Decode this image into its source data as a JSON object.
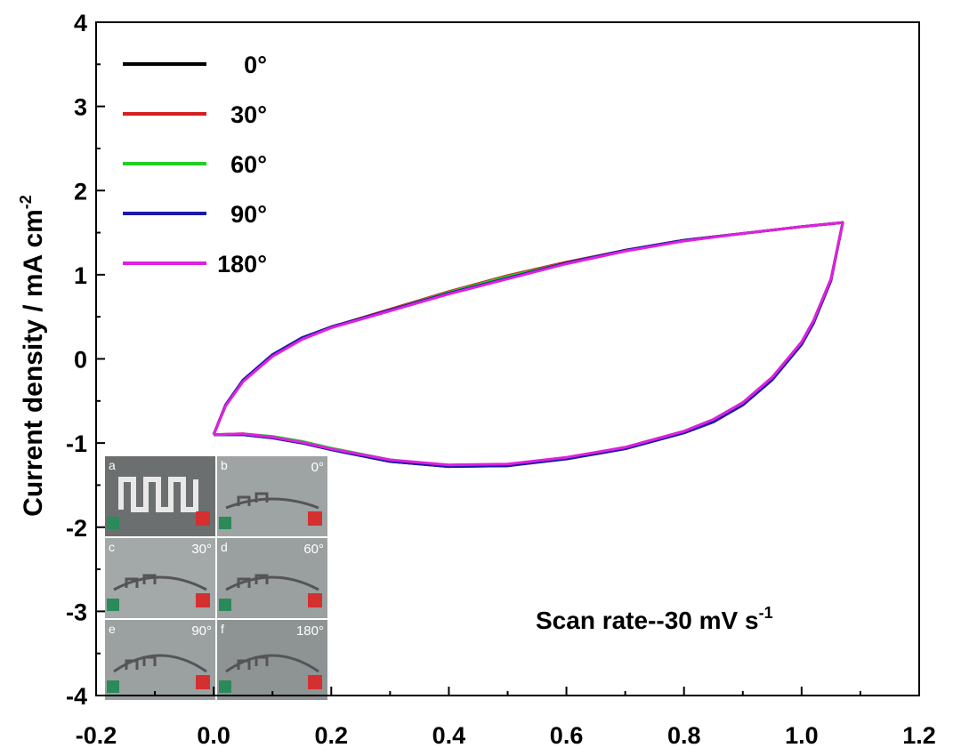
{
  "chart_data": {
    "type": "line",
    "title": "",
    "xlabel": "",
    "ylabel": "Current density / mA cm",
    "ylabel_sup": "-2",
    "xlim": [
      -0.2,
      1.2
    ],
    "ylim": [
      -4,
      4
    ],
    "x_ticks": [
      "-0.2",
      "0.0",
      "0.2",
      "0.4",
      "0.6",
      "0.8",
      "1.0",
      "1.2"
    ],
    "y_ticks": [
      "4",
      "3",
      "2",
      "1",
      "0",
      "-1",
      "-2",
      "-3",
      "-4"
    ],
    "legend_position": "top-left",
    "grid": false,
    "annotation": "Scan rate--30 mV s",
    "annotation_sup": "-1",
    "series": [
      {
        "name": "0°",
        "color": "#000000",
        "x": [
          0.0,
          0.02,
          0.05,
          0.1,
          0.15,
          0.2,
          0.3,
          0.4,
          0.5,
          0.6,
          0.7,
          0.8,
          0.9,
          1.0,
          1.07,
          1.05,
          1.02,
          1.0,
          0.95,
          0.9,
          0.85,
          0.8,
          0.7,
          0.6,
          0.5,
          0.4,
          0.3,
          0.2,
          0.15,
          0.1,
          0.05,
          0.0
        ],
        "y": [
          -0.9,
          -0.55,
          -0.25,
          0.05,
          0.25,
          0.38,
          0.58,
          0.78,
          0.96,
          1.14,
          1.29,
          1.41,
          1.49,
          1.57,
          1.62,
          0.95,
          0.45,
          0.2,
          -0.22,
          -0.52,
          -0.72,
          -0.86,
          -1.05,
          -1.18,
          -1.27,
          -1.28,
          -1.22,
          -1.08,
          -1.0,
          -0.94,
          -0.9,
          -0.9
        ]
      },
      {
        "name": "30°",
        "color": "#d42020",
        "x": [
          0.0,
          0.02,
          0.05,
          0.1,
          0.15,
          0.2,
          0.3,
          0.4,
          0.5,
          0.6,
          0.7,
          0.8,
          0.9,
          1.0,
          1.07,
          1.05,
          1.02,
          1.0,
          0.95,
          0.9,
          0.85,
          0.8,
          0.7,
          0.6,
          0.5,
          0.4,
          0.3,
          0.2,
          0.15,
          0.1,
          0.05,
          0.0
        ],
        "y": [
          -0.9,
          -0.56,
          -0.26,
          0.04,
          0.24,
          0.38,
          0.59,
          0.8,
          0.99,
          1.15,
          1.29,
          1.41,
          1.49,
          1.57,
          1.62,
          0.94,
          0.43,
          0.18,
          -0.24,
          -0.54,
          -0.74,
          -0.87,
          -1.06,
          -1.18,
          -1.26,
          -1.27,
          -1.21,
          -1.07,
          -0.99,
          -0.93,
          -0.89,
          -0.9
        ]
      },
      {
        "name": "60°",
        "color": "#22d022",
        "x": [
          0.0,
          0.02,
          0.05,
          0.1,
          0.15,
          0.2,
          0.3,
          0.4,
          0.5,
          0.6,
          0.7,
          0.8,
          0.9,
          1.0,
          1.07,
          1.05,
          1.02,
          1.0,
          0.95,
          0.9,
          0.85,
          0.8,
          0.7,
          0.6,
          0.5,
          0.4,
          0.3,
          0.2,
          0.15,
          0.1,
          0.05,
          0.0
        ],
        "y": [
          -0.9,
          -0.56,
          -0.26,
          0.04,
          0.24,
          0.38,
          0.58,
          0.79,
          0.98,
          1.14,
          1.29,
          1.41,
          1.49,
          1.57,
          1.62,
          0.94,
          0.43,
          0.18,
          -0.24,
          -0.54,
          -0.74,
          -0.87,
          -1.06,
          -1.18,
          -1.26,
          -1.27,
          -1.2,
          -1.06,
          -0.98,
          -0.92,
          -0.89,
          -0.9
        ]
      },
      {
        "name": "90°",
        "color": "#1a1aa8",
        "x": [
          0.0,
          0.02,
          0.05,
          0.1,
          0.15,
          0.2,
          0.3,
          0.4,
          0.5,
          0.6,
          0.7,
          0.8,
          0.9,
          1.0,
          1.07,
          1.05,
          1.02,
          1.0,
          0.95,
          0.9,
          0.85,
          0.8,
          0.7,
          0.6,
          0.5,
          0.4,
          0.3,
          0.2,
          0.15,
          0.1,
          0.05,
          0.0
        ],
        "y": [
          -0.9,
          -0.55,
          -0.25,
          0.05,
          0.25,
          0.38,
          0.58,
          0.78,
          0.96,
          1.14,
          1.29,
          1.41,
          1.49,
          1.57,
          1.62,
          0.93,
          0.42,
          0.17,
          -0.25,
          -0.55,
          -0.75,
          -0.88,
          -1.07,
          -1.19,
          -1.27,
          -1.28,
          -1.22,
          -1.08,
          -1.0,
          -0.94,
          -0.9,
          -0.9
        ]
      },
      {
        "name": "180°",
        "color": "#e020e0",
        "x": [
          0.0,
          0.02,
          0.05,
          0.1,
          0.15,
          0.2,
          0.3,
          0.4,
          0.5,
          0.6,
          0.7,
          0.8,
          0.9,
          1.0,
          1.07,
          1.05,
          1.02,
          1.0,
          0.95,
          0.9,
          0.85,
          0.8,
          0.7,
          0.6,
          0.5,
          0.4,
          0.3,
          0.2,
          0.15,
          0.1,
          0.05,
          0.0
        ],
        "y": [
          -0.9,
          -0.56,
          -0.27,
          0.03,
          0.23,
          0.37,
          0.57,
          0.77,
          0.95,
          1.13,
          1.28,
          1.4,
          1.49,
          1.57,
          1.62,
          0.95,
          0.45,
          0.2,
          -0.22,
          -0.52,
          -0.72,
          -0.86,
          -1.05,
          -1.17,
          -1.25,
          -1.26,
          -1.2,
          -1.07,
          -0.99,
          -0.93,
          -0.89,
          -0.9
        ]
      }
    ]
  },
  "inset": {
    "panels": [
      {
        "letter": "a",
        "angle": ""
      },
      {
        "letter": "b",
        "angle": "0°"
      },
      {
        "letter": "c",
        "angle": "30°"
      },
      {
        "letter": "d",
        "angle": "60°"
      },
      {
        "letter": "e",
        "angle": "90°"
      },
      {
        "letter": "f",
        "angle": "180°"
      }
    ]
  }
}
